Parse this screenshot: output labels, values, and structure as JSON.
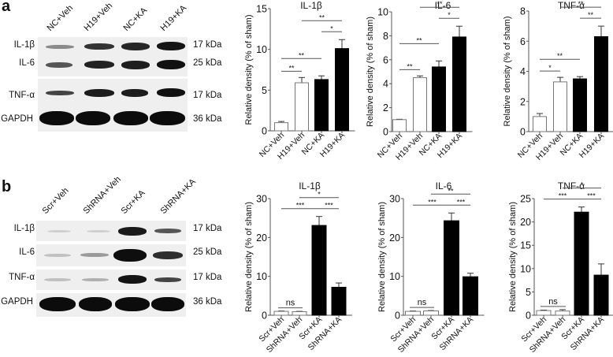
{
  "panels": {
    "a": {
      "letter": "a",
      "lanes": [
        "NC+Veh",
        "H19+Veh",
        "NC+KA",
        "H19+KA"
      ],
      "blots": [
        {
          "label": "IL-1β",
          "kda": "17 kDa"
        },
        {
          "label": "IL-6",
          "kda": "25 kDa"
        },
        {
          "label": "TNF-α",
          "kda": "17 kDa"
        },
        {
          "label": "GAPDH",
          "kda": "36 kDa"
        }
      ]
    },
    "b": {
      "letter": "b",
      "lanes": [
        "Scr+Veh",
        "ShRNA+Veh",
        "Scr+KA",
        "ShRNA+KA"
      ],
      "blots": [
        {
          "label": "IL-1β",
          "kda": "17 kDa"
        },
        {
          "label": "IL-6",
          "kda": "25 kDa"
        },
        {
          "label": "TNF-α",
          "kda": "17 kDa"
        },
        {
          "label": "GAPDH",
          "kda": "36 kDa"
        }
      ]
    }
  },
  "colors": {
    "open_bar": "#ffffff",
    "filled_bar": "#000000",
    "axis": "#555555",
    "sig_line": "#555555"
  },
  "chart_data": [
    {
      "type": "bar",
      "panel": "a",
      "title": "IL-1β",
      "categories": [
        "NC+Veh",
        "H19+Veh",
        "NC+KA",
        "H19+KA"
      ],
      "values": [
        1.0,
        5.9,
        6.3,
        10.1
      ],
      "errors": [
        0.15,
        0.65,
        0.45,
        1.1
      ],
      "fills": [
        "open",
        "open",
        "filled",
        "filled"
      ],
      "ylabel": "Relative density (% of sham)",
      "ylim": [
        0,
        15
      ],
      "yticks": [
        0,
        5,
        10,
        15
      ],
      "significance": [
        {
          "from": 0,
          "to": 1,
          "label": "**"
        },
        {
          "from": 0,
          "to": 2,
          "label": "**"
        },
        {
          "from": 1,
          "to": 3,
          "label": "**"
        },
        {
          "from": 2,
          "to": 3,
          "label": "*"
        }
      ]
    },
    {
      "type": "bar",
      "panel": "a",
      "title": "IL-6",
      "categories": [
        "NC+Veh",
        "H19+Veh",
        "NC+KA",
        "H19+KA"
      ],
      "values": [
        1.0,
        4.5,
        5.4,
        7.9
      ],
      "errors": [
        0.03,
        0.15,
        0.5,
        0.9
      ],
      "fills": [
        "open",
        "open",
        "filled",
        "filled"
      ],
      "ylabel": "Relative density (% of sham)",
      "ylim": [
        0,
        10
      ],
      "yticks": [
        0,
        2,
        4,
        6,
        8,
        10
      ],
      "significance": [
        {
          "from": 0,
          "to": 1,
          "label": "**"
        },
        {
          "from": 0,
          "to": 2,
          "label": "**"
        },
        {
          "from": 1,
          "to": 3,
          "label": "**"
        },
        {
          "from": 2,
          "to": 3,
          "label": "*"
        }
      ]
    },
    {
      "type": "bar",
      "panel": "a",
      "title": "TNF-α",
      "categories": [
        "NC+Veh",
        "H19+Veh",
        "NC+KA",
        "H19+KA"
      ],
      "values": [
        1.0,
        3.3,
        3.5,
        6.3
      ],
      "errors": [
        0.2,
        0.3,
        0.15,
        0.7
      ],
      "fills": [
        "open",
        "open",
        "filled",
        "filled"
      ],
      "ylabel": "Relative density (% of sham)",
      "ylim": [
        0,
        8
      ],
      "yticks": [
        0,
        2,
        4,
        6,
        8
      ],
      "significance": [
        {
          "from": 0,
          "to": 1,
          "label": "*"
        },
        {
          "from": 0,
          "to": 2,
          "label": "**"
        },
        {
          "from": 1,
          "to": 3,
          "label": "**"
        },
        {
          "from": 2,
          "to": 3,
          "label": "**"
        }
      ]
    },
    {
      "type": "bar",
      "panel": "b",
      "title": "IL-1β",
      "categories": [
        "Scr+Veh",
        "ShRNA+Veh",
        "Scr+KA",
        "ShRNA+KA"
      ],
      "values": [
        1.0,
        0.9,
        23.1,
        7.2
      ],
      "errors": [
        0.1,
        0.1,
        2.3,
        1.1
      ],
      "fills": [
        "open",
        "open",
        "filled",
        "filled"
      ],
      "ylabel": "Relative density (% of sham)",
      "ylim": [
        0,
        30
      ],
      "yticks": [
        0,
        10,
        20,
        30
      ],
      "significance": [
        {
          "from": 0,
          "to": 1,
          "label": "ns"
        },
        {
          "from": 0,
          "to": 2,
          "label": "***"
        },
        {
          "from": 1,
          "to": 3,
          "label": "*"
        },
        {
          "from": 2,
          "to": 3,
          "label": "***"
        }
      ]
    },
    {
      "type": "bar",
      "panel": "b",
      "title": "IL-6",
      "categories": [
        "Scr+Veh",
        "ShRNA+Veh",
        "Scr+KA",
        "ShRNA+KA"
      ],
      "values": [
        1.0,
        1.1,
        24.3,
        9.9
      ],
      "errors": [
        0.1,
        0.1,
        2.0,
        0.9
      ],
      "fills": [
        "open",
        "open",
        "filled",
        "filled"
      ],
      "ylabel": "Relative density (% of sham)",
      "ylim": [
        0,
        30
      ],
      "yticks": [
        0,
        10,
        20,
        30
      ],
      "significance": [
        {
          "from": 0,
          "to": 1,
          "label": "ns"
        },
        {
          "from": 0,
          "to": 2,
          "label": "***"
        },
        {
          "from": 1,
          "to": 3,
          "label": "**"
        },
        {
          "from": 2,
          "to": 3,
          "label": "***"
        }
      ]
    },
    {
      "type": "bar",
      "panel": "b",
      "title": "TNF-α",
      "categories": [
        "Scr+Veh",
        "ShRNA+Veh",
        "Scr+KA",
        "ShRNA+KA"
      ],
      "values": [
        1.0,
        0.9,
        22.1,
        8.6
      ],
      "errors": [
        0.1,
        0.3,
        1.1,
        2.4
      ],
      "fills": [
        "open",
        "open",
        "filled",
        "filled"
      ],
      "ylabel": "Relative density (% of sham)",
      "ylim": [
        0,
        25
      ],
      "yticks": [
        0,
        5,
        10,
        15,
        20,
        25
      ],
      "significance": [
        {
          "from": 0,
          "to": 1,
          "label": "ns"
        },
        {
          "from": 0,
          "to": 2,
          "label": "***"
        },
        {
          "from": 1,
          "to": 3,
          "label": "*"
        },
        {
          "from": 2,
          "to": 3,
          "label": "***"
        }
      ]
    }
  ]
}
